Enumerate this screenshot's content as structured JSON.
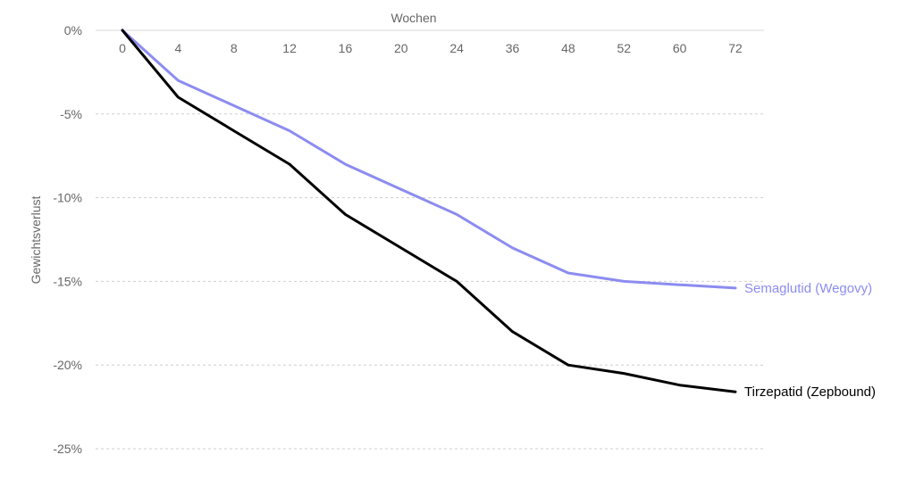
{
  "chart_data": {
    "type": "line",
    "title": "",
    "xlabel": "Wochen",
    "ylabel": "Gewichtsverlust",
    "categories": [
      "0",
      "4",
      "8",
      "12",
      "16",
      "20",
      "24",
      "36",
      "48",
      "52",
      "60",
      "72"
    ],
    "y_ticks": [
      {
        "value": 0,
        "label": "0%"
      },
      {
        "value": -5,
        "label": "-5%"
      },
      {
        "value": -10,
        "label": "-10%"
      },
      {
        "value": -15,
        "label": "-15%"
      },
      {
        "value": -20,
        "label": "-20%"
      },
      {
        "value": -25,
        "label": "-25%"
      }
    ],
    "ylim": [
      -25,
      0
    ],
    "grid": true,
    "x_axis_position": "top",
    "series": [
      {
        "name": "Semaglutid (Wegovy)",
        "color": "#8c8cf0",
        "values": [
          0,
          -3,
          -4.5,
          -6,
          -8,
          -9.5,
          -11,
          -13,
          -14.5,
          -15,
          -15.2,
          -15.4
        ]
      },
      {
        "name": "Tirzepatid (Zepbound)",
        "color": "#000000",
        "values": [
          0,
          -4,
          -6,
          -8,
          -11,
          -13,
          -15,
          -18,
          -20,
          -20.5,
          -21.2,
          -21.6
        ]
      }
    ]
  }
}
